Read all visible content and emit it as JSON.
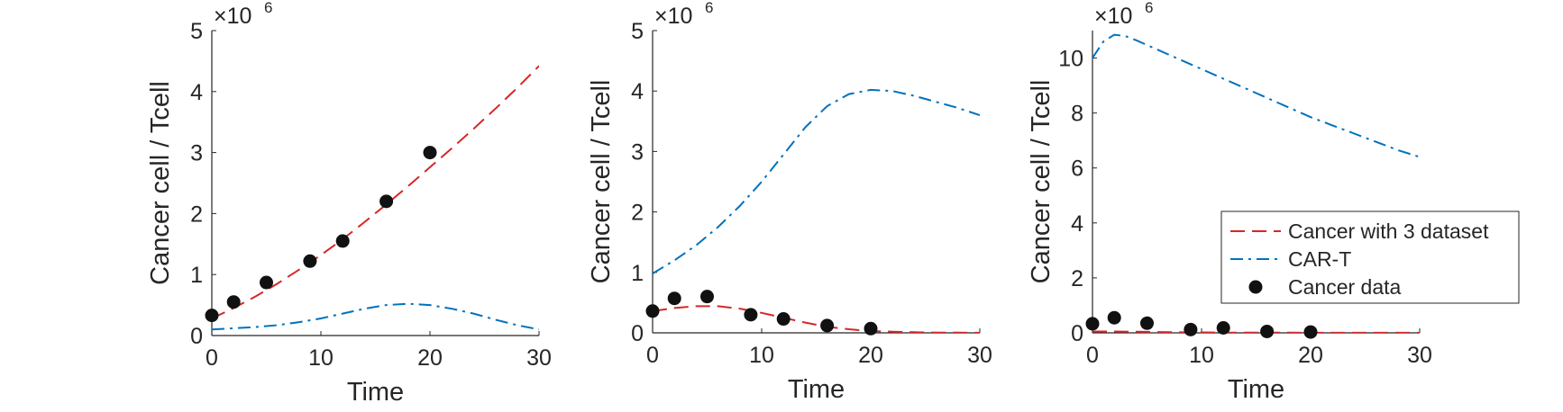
{
  "chart_data": [
    {
      "type": "line",
      "xlabel": "Time",
      "ylabel": "Cancer cell / Tcell",
      "xlim": [
        0,
        30
      ],
      "ylim": [
        0,
        5
      ],
      "xticks": [
        0,
        10,
        20,
        30
      ],
      "yticks": [
        0,
        1,
        2,
        3,
        4,
        5
      ],
      "y_multiplier": "×10",
      "y_multiplier_exp": "6",
      "series": [
        {
          "kind": "cancer_fit",
          "color": "#d62728",
          "style": "dashed",
          "x": [
            0,
            2,
            4,
            6,
            8,
            10,
            12,
            14,
            16,
            18,
            20,
            22,
            24,
            26,
            28,
            30
          ],
          "y": [
            0.28,
            0.45,
            0.64,
            0.85,
            1.08,
            1.32,
            1.58,
            1.86,
            2.15,
            2.45,
            2.76,
            3.07,
            3.39,
            3.72,
            4.06,
            4.42
          ]
        },
        {
          "kind": "cart",
          "color": "#0072bd",
          "style": "dashdot",
          "x": [
            0,
            2,
            4,
            6,
            8,
            10,
            12,
            14,
            16,
            18,
            20,
            22,
            24,
            26,
            28,
            30
          ],
          "y": [
            0.1,
            0.12,
            0.14,
            0.17,
            0.22,
            0.28,
            0.36,
            0.44,
            0.5,
            0.52,
            0.5,
            0.44,
            0.36,
            0.26,
            0.17,
            0.1
          ]
        },
        {
          "kind": "cancer_data",
          "color": "#111111",
          "style": "markers",
          "x": [
            0,
            2,
            5,
            9,
            12,
            16,
            20
          ],
          "y": [
            0.33,
            0.55,
            0.87,
            1.22,
            1.55,
            2.2,
            3.0
          ]
        }
      ]
    },
    {
      "type": "line",
      "xlabel": "Time",
      "ylabel": "Cancer cell / Tcell",
      "xlim": [
        0,
        30
      ],
      "ylim": [
        0,
        5
      ],
      "xticks": [
        0,
        10,
        20,
        30
      ],
      "yticks": [
        0,
        1,
        2,
        3,
        4,
        5
      ],
      "y_multiplier": "×10",
      "y_multiplier_exp": "6",
      "series": [
        {
          "kind": "cancer_fit",
          "color": "#d62728",
          "style": "dashed",
          "x": [
            0,
            2,
            4,
            6,
            8,
            10,
            12,
            14,
            16,
            18,
            20,
            22,
            24,
            26,
            28,
            30
          ],
          "y": [
            0.36,
            0.41,
            0.44,
            0.44,
            0.4,
            0.33,
            0.25,
            0.17,
            0.1,
            0.06,
            0.03,
            0.02,
            0.01,
            0.005,
            0.003,
            0.002
          ]
        },
        {
          "kind": "cart",
          "color": "#0072bd",
          "style": "dashdot",
          "x": [
            0,
            2,
            4,
            6,
            8,
            10,
            12,
            14,
            16,
            18,
            20,
            22,
            24,
            26,
            28,
            30
          ],
          "y": [
            0.98,
            1.2,
            1.45,
            1.75,
            2.1,
            2.5,
            2.95,
            3.4,
            3.75,
            3.95,
            4.02,
            4.0,
            3.92,
            3.82,
            3.72,
            3.6
          ]
        },
        {
          "kind": "cancer_data",
          "color": "#111111",
          "style": "markers",
          "x": [
            0,
            2,
            5,
            9,
            12,
            16,
            20
          ],
          "y": [
            0.36,
            0.57,
            0.6,
            0.3,
            0.23,
            0.12,
            0.07
          ]
        }
      ]
    },
    {
      "type": "line",
      "xlabel": "Time",
      "ylabel": "Cancer cell / Tcell",
      "xlim": [
        0,
        30
      ],
      "ylim": [
        0,
        11
      ],
      "xticks": [
        0,
        10,
        20,
        30
      ],
      "yticks": [
        0,
        2,
        4,
        6,
        8,
        10
      ],
      "y_multiplier": "×10",
      "y_multiplier_exp": "6",
      "legend_placement": "lower-right",
      "series": [
        {
          "kind": "cancer_fit",
          "name": "Cancer with 3 dataset",
          "color": "#d62728",
          "style": "dashed",
          "x": [
            0,
            2,
            4,
            6,
            8,
            10,
            12,
            14,
            16,
            18,
            20,
            22,
            24,
            26,
            28,
            30
          ],
          "y": [
            0.05,
            0.05,
            0.04,
            0.03,
            0.02,
            0.015,
            0.01,
            0.008,
            0.006,
            0.005,
            0.004,
            0.003,
            0.003,
            0.002,
            0.002,
            0.002
          ]
        },
        {
          "kind": "cart",
          "name": "CAR-T",
          "color": "#0072bd",
          "style": "dashdot",
          "x": [
            0,
            1,
            2,
            3,
            4,
            6,
            8,
            10,
            12,
            14,
            16,
            18,
            20,
            22,
            24,
            26,
            28,
            30
          ],
          "y": [
            10.0,
            10.6,
            10.85,
            10.8,
            10.65,
            10.3,
            9.95,
            9.6,
            9.25,
            8.9,
            8.55,
            8.2,
            7.85,
            7.55,
            7.25,
            6.95,
            6.65,
            6.4
          ]
        },
        {
          "kind": "cancer_data",
          "name": "Cancer data",
          "color": "#111111",
          "style": "markers",
          "x": [
            0,
            2,
            5,
            9,
            12,
            16,
            20
          ],
          "y": [
            0.33,
            0.55,
            0.35,
            0.12,
            0.18,
            0.05,
            0.03
          ]
        }
      ]
    }
  ]
}
